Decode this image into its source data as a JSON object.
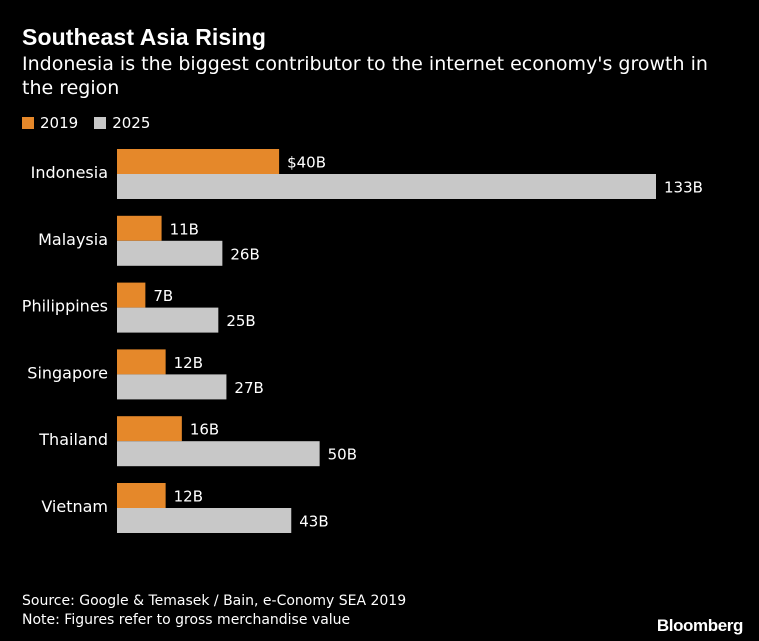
{
  "colors": {
    "background": "#000000",
    "series_2019": "#E5882A",
    "series_2025": "#C8C8C8",
    "text": "#FFFFFF"
  },
  "chart_data": {
    "type": "bar",
    "orientation": "horizontal",
    "title": "Southeast Asia Rising",
    "subtitle": "Indonesia is the biggest contributor to the internet economy's growth in the region",
    "categories": [
      "Indonesia",
      "Malaysia",
      "Philippines",
      "Singapore",
      "Thailand",
      "Vietnam"
    ],
    "series": [
      {
        "name": "2019",
        "values": [
          40,
          11,
          7,
          12,
          16,
          12
        ],
        "labels": [
          "$40B",
          "11B",
          "7B",
          "12B",
          "16B",
          "12B"
        ]
      },
      {
        "name": "2025",
        "values": [
          133,
          26,
          25,
          27,
          50,
          43
        ],
        "labels": [
          "133B",
          "26B",
          "25B",
          "27B",
          "50B",
          "43B"
        ]
      }
    ],
    "xlim": [
      0,
      133
    ],
    "legend_position": "top-left",
    "grid": false
  },
  "footer": {
    "source": "Source: Google & Temasek / Bain, e-Conomy SEA 2019",
    "note": "Note: Figures refer to gross merchandise value"
  },
  "brand": "Bloomberg"
}
